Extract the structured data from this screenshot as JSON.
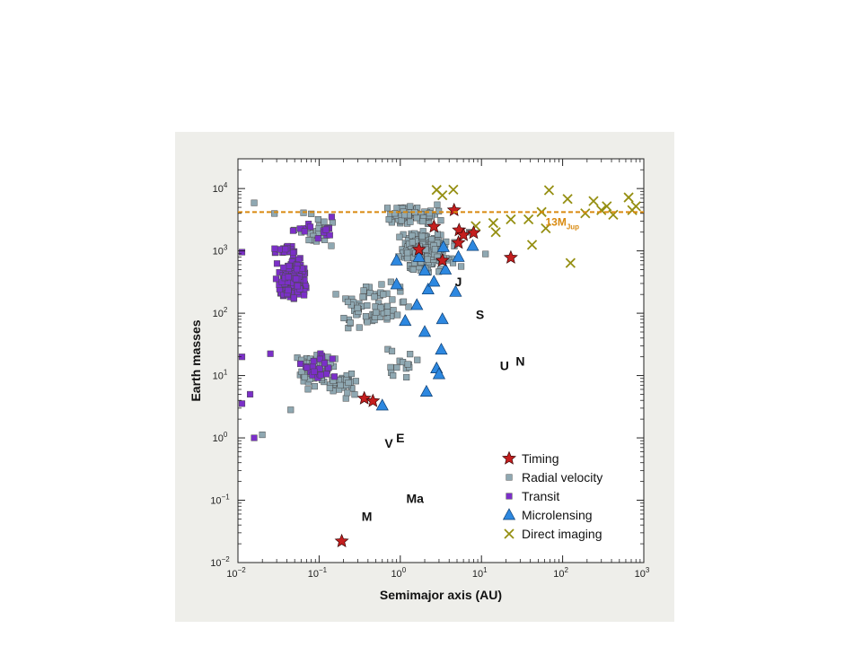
{
  "chart_data": {
    "type": "scatter",
    "xscale": "log",
    "yscale": "log",
    "xlabel": "Semimajor axis (AU)",
    "ylabel": "Earth masses",
    "xlim": [
      0.01,
      1000
    ],
    "ylim": [
      0.01,
      30000
    ],
    "x_ticks": [
      {
        "value": 0.01,
        "base": "10",
        "exp": "−2"
      },
      {
        "value": 0.1,
        "base": "10",
        "exp": "−1"
      },
      {
        "value": 1,
        "base": "10",
        "exp": "0"
      },
      {
        "value": 10,
        "base": "10",
        "exp": "1"
      },
      {
        "value": 100,
        "base": "10",
        "exp": "2"
      },
      {
        "value": 1000,
        "base": "10",
        "exp": "3"
      }
    ],
    "y_ticks": [
      {
        "value": 0.01,
        "base": "10",
        "exp": "−2"
      },
      {
        "value": 0.1,
        "base": "10",
        "exp": "−1"
      },
      {
        "value": 1,
        "base": "10",
        "exp": "0"
      },
      {
        "value": 10,
        "base": "10",
        "exp": "1"
      },
      {
        "value": 100,
        "base": "10",
        "exp": "2"
      },
      {
        "value": 1000,
        "base": "10",
        "exp": "3"
      },
      {
        "value": 10000,
        "base": "10",
        "exp": "4"
      }
    ],
    "legend_position": "bottom-right",
    "reference_line": {
      "y": 4200,
      "label_main": "13M",
      "label_sub": "Jup",
      "color": "#d98a10",
      "style": "dashed"
    },
    "solar_system": [
      {
        "label": "M",
        "x": 0.387,
        "y": 0.055
      },
      {
        "label": "V",
        "x": 0.723,
        "y": 0.815
      },
      {
        "label": "E",
        "x": 1.0,
        "y": 1.0
      },
      {
        "label": "Ma",
        "x": 1.52,
        "y": 0.107
      },
      {
        "label": "J",
        "x": 5.2,
        "y": 318
      },
      {
        "label": "S",
        "x": 9.58,
        "y": 95
      },
      {
        "label": "U",
        "x": 19.2,
        "y": 14.5
      },
      {
        "label": "N",
        "x": 30.1,
        "y": 17.1
      }
    ],
    "series": [
      {
        "name": "Timing",
        "marker": "star",
        "color": "#c41e1e",
        "points": [
          [
            0.19,
            0.022
          ],
          [
            0.36,
            4.3
          ],
          [
            0.46,
            3.9
          ],
          [
            1.7,
            1050
          ],
          [
            2.6,
            2450
          ],
          [
            3.3,
            700
          ],
          [
            4.6,
            4500
          ],
          [
            5.2,
            1350
          ],
          [
            5.3,
            2150
          ],
          [
            6.0,
            1800
          ],
          [
            8.0,
            1950
          ],
          [
            23,
            780
          ]
        ]
      },
      {
        "name": "Radial velocity",
        "marker": "square",
        "color": "#8fa8b2",
        "generated": {
          "count": 560,
          "seed": 7,
          "clusters": [
            {
              "x": [
                -0.1,
                0.75
              ],
              "y": [
                2.6,
                3.4
              ],
              "n": 260
            },
            {
              "x": [
                -0.3,
                0.65
              ],
              "y": [
                3.3,
                3.85
              ],
              "n": 70
            },
            {
              "x": [
                -1.35,
                -0.75
              ],
              "y": [
                0.75,
                1.45
              ],
              "n": 80
            },
            {
              "x": [
                -1.0,
                -0.45
              ],
              "y": [
                0.6,
                1.2
              ],
              "n": 40
            },
            {
              "x": [
                -0.95,
                0.3
              ],
              "y": [
                1.5,
                2.6
              ],
              "n": 70
            },
            {
              "x": [
                -1.4,
                -0.7
              ],
              "y": [
                2.9,
                3.7
              ],
              "n": 25
            },
            {
              "x": [
                -0.4,
                0.4
              ],
              "y": [
                0.7,
                1.7
              ],
              "n": 15
            }
          ]
        },
        "points": [
          [
            -1.8,
            3.77
          ],
          [
            -1.55,
            3.6
          ],
          [
            -1.7,
            0.05
          ],
          [
            -1.35,
            0.45
          ],
          [
            0.85,
            3.3
          ],
          [
            0.75,
            2.75
          ],
          [
            1.05,
            2.95
          ]
        ]
      },
      {
        "name": "Transit",
        "marker": "square",
        "color": "#7b2fc8",
        "generated": {
          "count": 300,
          "seed": 11,
          "clusters": [
            {
              "x": [
                -1.55,
                -1.1
              ],
              "y": [
                2.1,
                2.95
              ],
              "n": 240
            },
            {
              "x": [
                -1.65,
                -1.2
              ],
              "y": [
                2.9,
                3.1
              ],
              "n": 20
            },
            {
              "x": [
                -1.35,
                -0.7
              ],
              "y": [
                0.8,
                1.5
              ],
              "n": 25
            },
            {
              "x": [
                -1.45,
                -0.55
              ],
              "y": [
                3.1,
                3.6
              ],
              "n": 15
            }
          ]
        },
        "points": [
          [
            -1.95,
            2.98
          ],
          [
            -1.95,
            0.55
          ],
          [
            -1.85,
            0.7
          ],
          [
            -1.8,
            0.0
          ],
          [
            -1.6,
            1.35
          ],
          [
            -1.95,
            1.3
          ]
        ]
      },
      {
        "name": "Microlensing",
        "marker": "triangle",
        "color": "#2d88e0",
        "points": [
          [
            0.6,
            3.3
          ],
          [
            0.9,
            290
          ],
          [
            0.9,
            700
          ],
          [
            1.15,
            75
          ],
          [
            1.6,
            135
          ],
          [
            1.7,
            800
          ],
          [
            2.0,
            480
          ],
          [
            2.0,
            50
          ],
          [
            2.1,
            5.5
          ],
          [
            2.2,
            240
          ],
          [
            2.6,
            320
          ],
          [
            2.8,
            13
          ],
          [
            3.0,
            10.5
          ],
          [
            3.2,
            26
          ],
          [
            3.3,
            80
          ],
          [
            3.4,
            1150
          ],
          [
            3.6,
            500
          ],
          [
            5.2,
            800
          ],
          [
            7.8,
            1200
          ],
          [
            4.8,
            220
          ]
        ]
      },
      {
        "name": "Direct imaging",
        "marker": "x",
        "color": "#958f12",
        "points": [
          [
            2.8,
            9500
          ],
          [
            3.3,
            7800
          ],
          [
            4.5,
            9600
          ],
          [
            8.5,
            2500
          ],
          [
            14,
            2800
          ],
          [
            15,
            2000
          ],
          [
            23,
            3200
          ],
          [
            38,
            3200
          ],
          [
            42,
            1250
          ],
          [
            55,
            4200
          ],
          [
            62,
            2300
          ],
          [
            68,
            9400
          ],
          [
            115,
            6800
          ],
          [
            125,
            640
          ],
          [
            190,
            4000
          ],
          [
            240,
            6300
          ],
          [
            300,
            4500
          ],
          [
            350,
            5200
          ],
          [
            420,
            3800
          ],
          [
            650,
            7200
          ],
          [
            800,
            5200
          ],
          [
            720,
            4500
          ]
        ]
      }
    ]
  }
}
